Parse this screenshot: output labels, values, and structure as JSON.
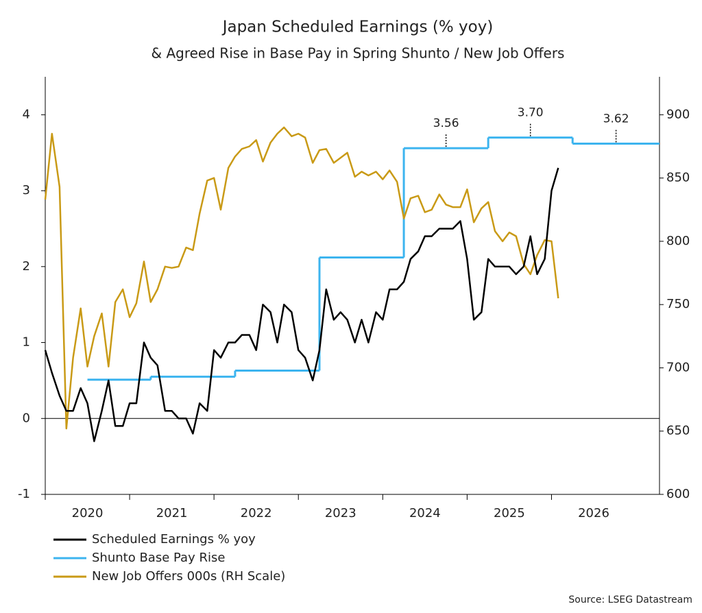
{
  "chart_data": {
    "type": "line",
    "title": "Japan Scheduled Earnings (% yoy)",
    "subtitle": "& Agreed Rise in Base Pay in Spring Shunto / New Job Offers",
    "source": "Source: LSEG Datastream",
    "xlim": [
      2020,
      2027.28
    ],
    "xticks": [
      2020,
      2021,
      2022,
      2023,
      2024,
      2025,
      2026
    ],
    "ylim": [
      -1,
      4.5
    ],
    "yticks": [
      {
        "value": -1,
        "label": "-1"
      },
      0,
      1,
      2,
      3,
      4
    ],
    "y2lim": [
      600,
      930
    ],
    "y2ticks": [
      600,
      650,
      700,
      750,
      800,
      850,
      900
    ],
    "x": [
      2020,
      2020.08,
      2020.17,
      2020.25,
      2020.33,
      2020.42,
      2020.5,
      2020.58,
      2020.67,
      2020.75,
      2020.83,
      2020.92,
      2021,
      2021.08,
      2021.17,
      2021.25,
      2021.33,
      2021.42,
      2021.5,
      2021.58,
      2021.67,
      2021.75,
      2021.83,
      2021.92,
      2022,
      2022.08,
      2022.17,
      2022.25,
      2022.33,
      2022.42,
      2022.5,
      2022.58,
      2022.67,
      2022.75,
      2022.83,
      2022.92,
      2023,
      2023.08,
      2023.17,
      2023.25,
      2023.33,
      2023.42,
      2023.5,
      2023.58,
      2023.67,
      2023.75,
      2023.83,
      2023.92,
      2024,
      2024.08,
      2024.17,
      2024.25,
      2024.33,
      2024.42,
      2024.5,
      2024.58,
      2024.67,
      2024.75,
      2024.83,
      2024.92,
      2025,
      2025.08,
      2025.17,
      2025.25,
      2025.33,
      2025.42,
      2025.5,
      2025.58,
      2025.67,
      2025.75,
      2025.83,
      2025.92,
      2026,
      2026.08
    ],
    "series": [
      {
        "name": "Scheduled Earnings % yoy",
        "color": "#000000",
        "values": [
          0.9,
          0.6,
          0.3,
          0.1,
          0.1,
          0.4,
          0.2,
          -0.3,
          0.1,
          0.5,
          -0.1,
          -0.1,
          0.2,
          0.2,
          1.0,
          0.8,
          0.7,
          0.1,
          0.1,
          0.0,
          0.0,
          -0.2,
          0.2,
          0.1,
          0.9,
          0.8,
          1.0,
          1.0,
          1.1,
          1.1,
          0.9,
          1.5,
          1.4,
          1.0,
          1.5,
          1.4,
          0.9,
          0.8,
          0.5,
          0.9,
          1.7,
          1.3,
          1.4,
          1.3,
          1.0,
          1.3,
          1.0,
          1.4,
          1.3,
          1.7,
          1.7,
          1.8,
          2.1,
          2.2,
          2.4,
          2.4,
          2.5,
          2.5,
          2.5,
          2.6,
          2.1,
          1.3,
          1.4,
          2.1,
          2.0,
          2.0,
          2.0,
          1.9,
          2.0,
          2.4,
          1.9,
          2.1,
          3.0,
          3.3
        ]
      },
      {
        "name": "Shunto Base Pay Rise",
        "color": "#3cb4ef",
        "step": true,
        "x": [
          2020.5,
          2021.25,
          2022.25,
          2023.25,
          2024.25,
          2025.25,
          2026.25
        ],
        "values": [
          0.51,
          0.55,
          0.63,
          2.12,
          3.56,
          3.7,
          3.62
        ],
        "value_labels": [
          null,
          null,
          null,
          null,
          "3.56",
          "3.70",
          "3.62"
        ]
      },
      {
        "name": "New Job Offers 000s (RH Scale)",
        "color": "#c99a16",
        "axis": "y2",
        "values": [
          833,
          885,
          843,
          652,
          708,
          747,
          701,
          725,
          743,
          701,
          752,
          762,
          740,
          751,
          784,
          752,
          762,
          780,
          779,
          780,
          795,
          793,
          822,
          848,
          850,
          825,
          858,
          867,
          873,
          875,
          880,
          863,
          878,
          885,
          890,
          883,
          885,
          882,
          862,
          872,
          873,
          862,
          866,
          870,
          851,
          855,
          852,
          855,
          849,
          856,
          847,
          818,
          834,
          836,
          823,
          825,
          837,
          829,
          827,
          827,
          841,
          815,
          826,
          831,
          808,
          800,
          807,
          804,
          782,
          774,
          789,
          801,
          800,
          755
        ]
      }
    ]
  }
}
